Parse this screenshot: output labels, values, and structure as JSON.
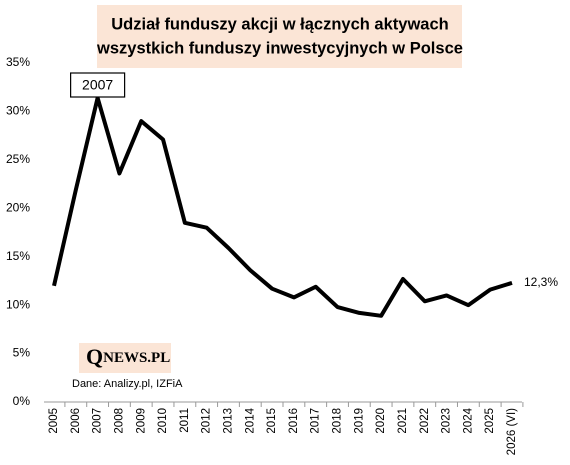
{
  "chart_data": {
    "type": "line",
    "title": [
      "Udział funduszy akcji w łącznych aktywach",
      "wszystkich funduszy inwestycyjnych w Polsce"
    ],
    "categories": [
      "2005",
      "2006",
      "2007",
      "2008",
      "2009",
      "2010",
      "2011",
      "2012",
      "2013",
      "2014",
      "2015",
      "2016",
      "2017",
      "2018",
      "2019",
      "2020",
      "2021",
      "2022",
      "2023",
      "2024",
      "2025",
      "2026 (VI)"
    ],
    "series": [
      {
        "color": "#000000",
        "values": [
          12.0,
          21.9,
          31.4,
          23.6,
          29.0,
          27.1,
          18.5,
          18.0,
          15.9,
          13.6,
          11.7,
          10.8,
          11.9,
          9.8,
          9.2,
          8.9,
          12.7,
          10.4,
          11.0,
          10.0,
          11.6,
          12.3
        ],
        "value_labels": [
          null,
          null,
          null,
          null,
          null,
          null,
          null,
          null,
          null,
          null,
          null,
          null,
          null,
          null,
          null,
          null,
          null,
          null,
          null,
          null,
          null,
          "12,3%"
        ]
      }
    ],
    "ylim": [
      0,
      35
    ],
    "yticks": [
      {
        "value": 0,
        "label": "0%"
      },
      {
        "value": 5,
        "label": "5%"
      },
      {
        "value": 10,
        "label": "10%"
      },
      {
        "value": 15,
        "label": "15%"
      },
      {
        "value": 20,
        "label": "20%"
      },
      {
        "value": 25,
        "label": "25%"
      },
      {
        "value": 30,
        "label": "30%"
      },
      {
        "value": 35,
        "label": "35%"
      }
    ],
    "grid": false,
    "annotation": "2007",
    "logo": [
      "Q",
      "NEWS.PL"
    ],
    "source": "Dane: Analizy.pl, IZFiA"
  }
}
